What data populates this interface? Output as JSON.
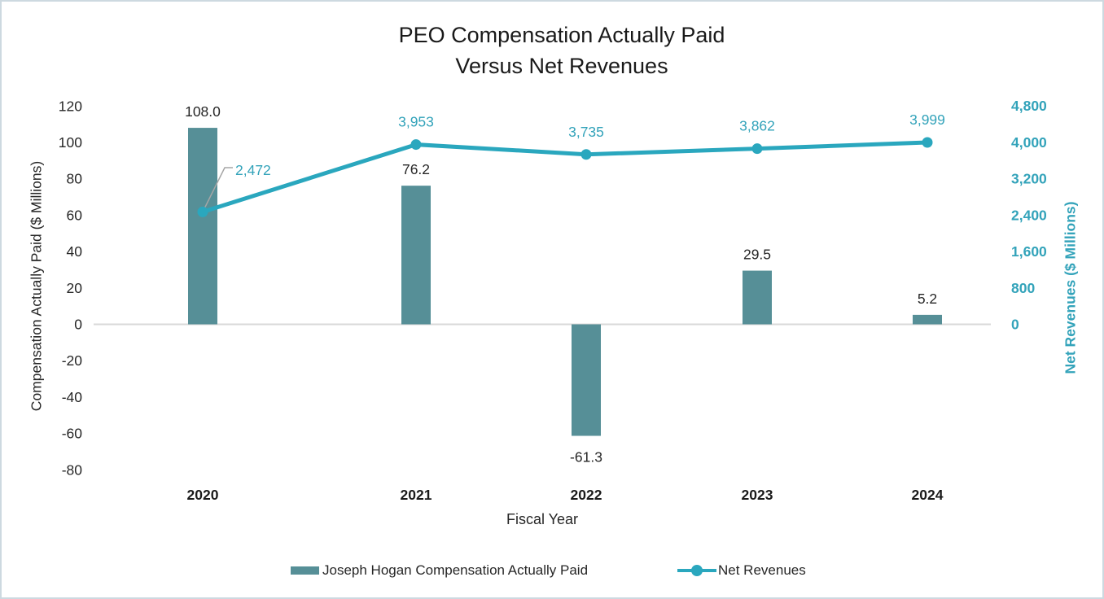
{
  "title": {
    "line1": "PEO Compensation Actually Paid",
    "line2": "Versus Net Revenues"
  },
  "axes": {
    "x": {
      "title": "Fiscal Year"
    }
  },
  "colors": {
    "bar": "#568f97",
    "line": "#2aa7be",
    "line_label": "#33a3ba",
    "right_axis_text": "#33a3ba",
    "dark_text": "#262626",
    "x_tick_text": "#1a1a1a",
    "zero_line": "#d9d9d9",
    "leader": "#a6a6a6",
    "border": "#cdd9e0"
  },
  "chart_data": {
    "type": "combo-bar-line",
    "title": "PEO Compensation Actually Paid Versus Net Revenues",
    "categories": [
      "2020",
      "2021",
      "2022",
      "2023",
      "2024"
    ],
    "series": [
      {
        "name": "Joseph Hogan Compensation Actually Paid",
        "type": "bar",
        "axis": "left",
        "color": "#568f97",
        "values": [
          108.0,
          76.2,
          -61.3,
          29.5,
          5.2
        ],
        "labels": [
          "108.0",
          "76.2",
          "-61.3",
          "29.5",
          "5.2"
        ]
      },
      {
        "name": "Net Revenues",
        "type": "line",
        "axis": "right",
        "color": "#2aa7be",
        "values": [
          2472,
          3953,
          3735,
          3862,
          3999
        ],
        "labels": [
          "2,472",
          "3,953",
          "3,735",
          "3,862",
          "3,999"
        ]
      }
    ],
    "left_axis": {
      "title": "Compensation Actually Paid ($ Millions)",
      "min": -80,
      "max": 120,
      "tick_values": [
        120,
        100,
        80,
        60,
        40,
        20,
        0,
        -20,
        -40,
        -60,
        -80
      ],
      "tick_labels": [
        "120",
        "100",
        "80",
        "60",
        "40",
        "20",
        "0",
        "-20",
        "-40",
        "-60",
        "-80"
      ]
    },
    "right_axis": {
      "title": "Net Revenues ($ Millions)",
      "min": 0,
      "max": 4800,
      "tick_values": [
        4800,
        4000,
        3200,
        2400,
        1600,
        800,
        0
      ],
      "tick_labels": [
        "4,800",
        "4,000",
        "3,200",
        "2,400",
        "1,600",
        "800",
        "0"
      ]
    },
    "x_axis": {
      "title": "Fiscal Year"
    },
    "legend_position": "bottom",
    "gridlines": "zero-line-only",
    "annotation": {
      "series": "Net Revenues",
      "point": "2020",
      "label": "2,472",
      "has_leader_line": true
    }
  }
}
